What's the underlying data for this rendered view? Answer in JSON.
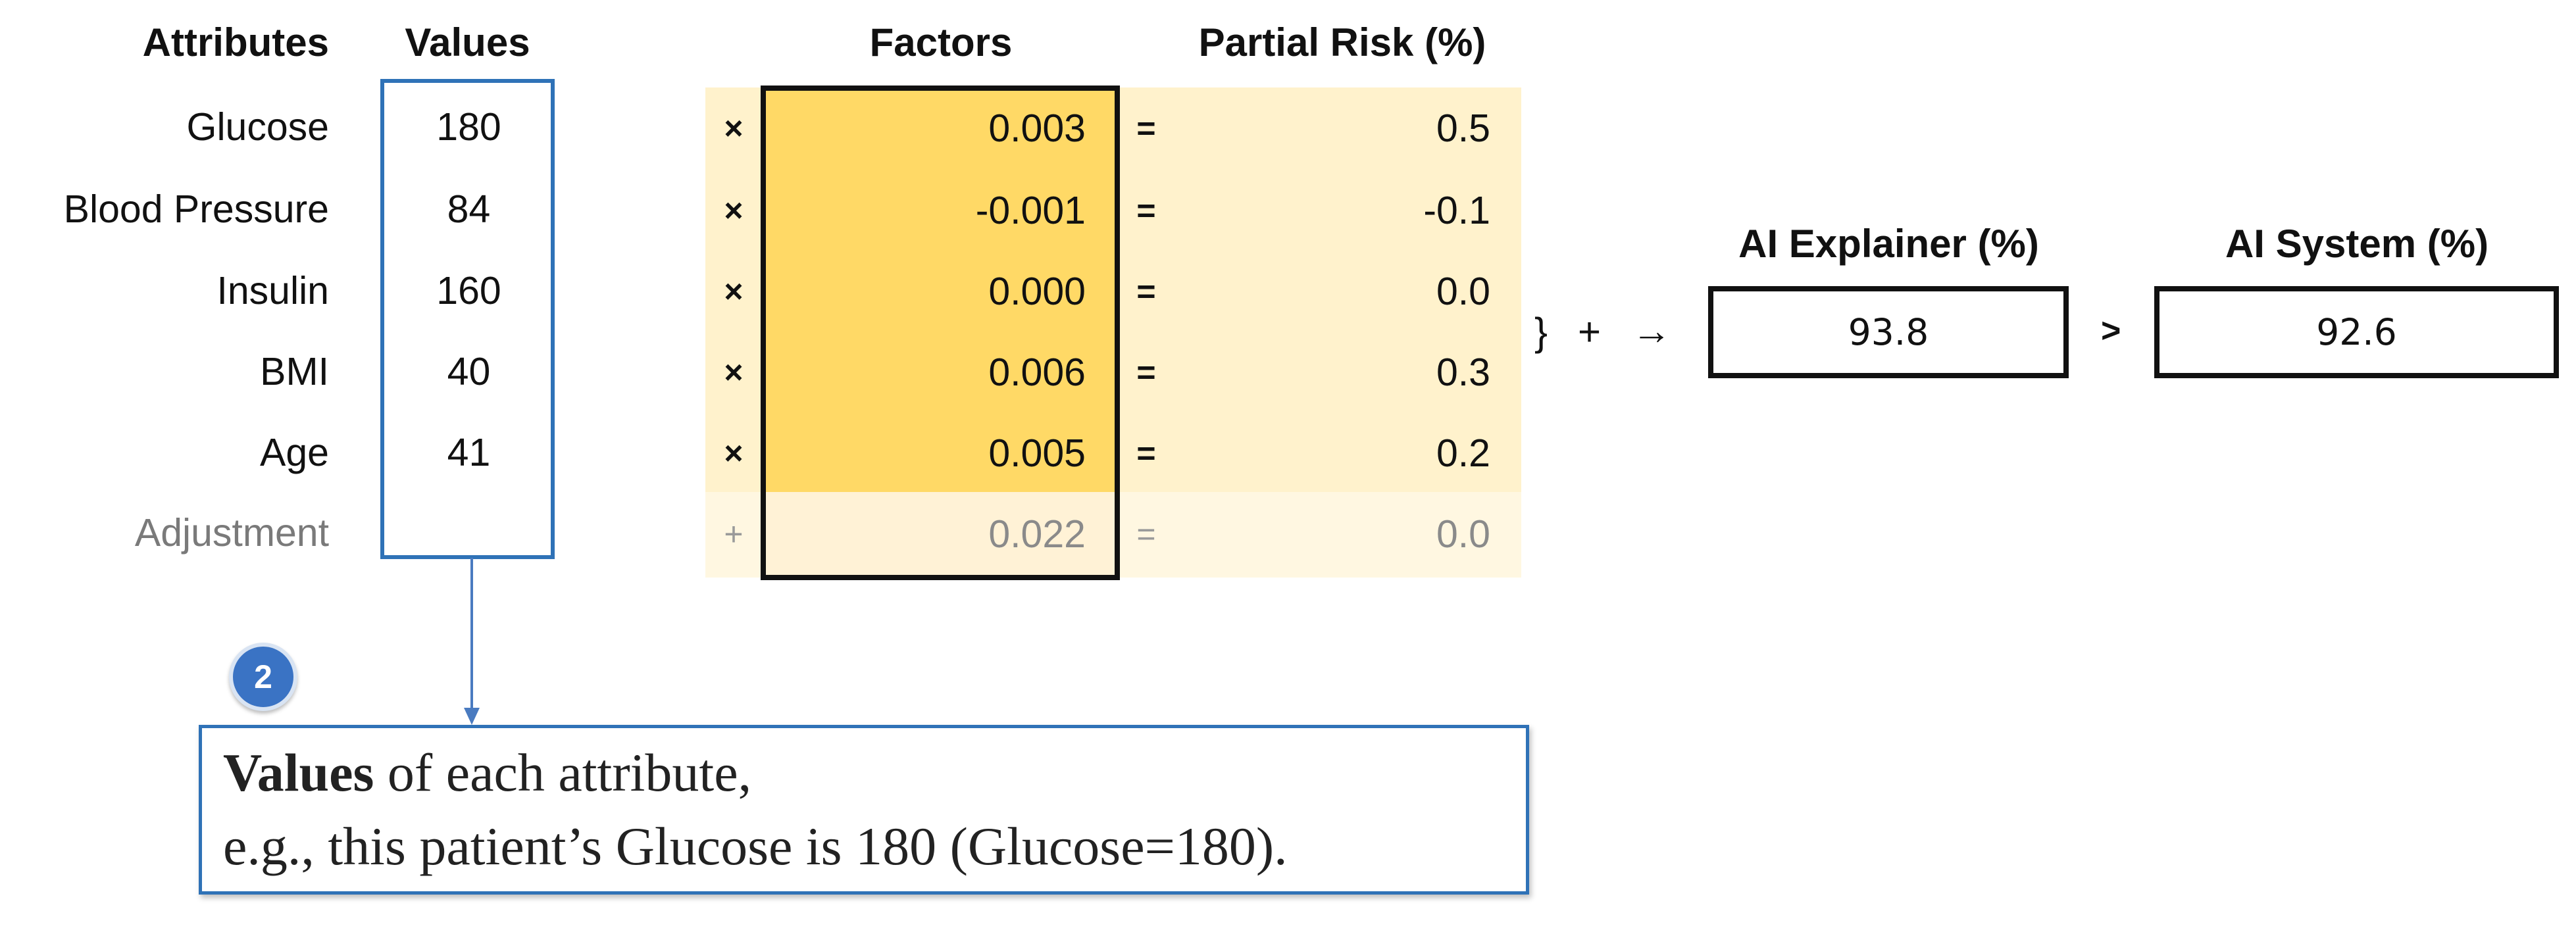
{
  "headers": {
    "attributes": "Attributes",
    "values": "Values",
    "factors": "Factors",
    "partial_risk": "Partial Risk (%)",
    "ai_explainer": "AI Explainer (%)",
    "ai_system": "AI System (%)"
  },
  "rows": [
    {
      "attribute": "Glucose",
      "value": "180",
      "op": "×",
      "factor": "0.003",
      "eq": "=",
      "risk": "0.5"
    },
    {
      "attribute": "Blood Pressure",
      "value": "84",
      "op": "×",
      "factor": "-0.001",
      "eq": "=",
      "risk": "-0.1"
    },
    {
      "attribute": "Insulin",
      "value": "160",
      "op": "×",
      "factor": "0.000",
      "eq": "=",
      "risk": "0.0"
    },
    {
      "attribute": "BMI",
      "value": "40",
      "op": "×",
      "factor": "0.006",
      "eq": "=",
      "risk": "0.3"
    },
    {
      "attribute": "Age",
      "value": "41",
      "op": "×",
      "factor": "0.005",
      "eq": "=",
      "risk": "0.2"
    },
    {
      "attribute": "Adjustment",
      "value": "",
      "op": "+",
      "factor": "0.022",
      "eq": "=",
      "risk": "0.0"
    }
  ],
  "sum_symbols": {
    "brace": "}",
    "plus": "+",
    "arrow": "→",
    "greater": ">"
  },
  "results": {
    "ai_explainer": "93.8",
    "ai_system": "92.6"
  },
  "badge": "2",
  "callout": {
    "bold": "Values",
    "line1_rest": " of each attribute,",
    "line2": "e.g., this patient’s Glucose is 180 (Glucose=180)."
  },
  "colors": {
    "value_box": "#2f72b7",
    "factor_fill": "#ffd966",
    "band_fill": "#fff2cc",
    "badge": "#3a73c4"
  }
}
